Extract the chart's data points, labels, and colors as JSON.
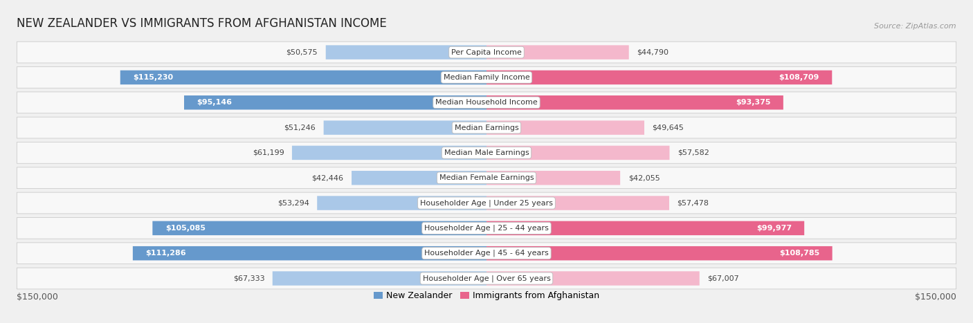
{
  "title": "NEW ZEALANDER VS IMMIGRANTS FROM AFGHANISTAN INCOME",
  "source": "Source: ZipAtlas.com",
  "categories": [
    "Per Capita Income",
    "Median Family Income",
    "Median Household Income",
    "Median Earnings",
    "Median Male Earnings",
    "Median Female Earnings",
    "Householder Age | Under 25 years",
    "Householder Age | 25 - 44 years",
    "Householder Age | 45 - 64 years",
    "Householder Age | Over 65 years"
  ],
  "nz_values": [
    50575,
    115230,
    95146,
    51246,
    61199,
    42446,
    53294,
    105085,
    111286,
    67333
  ],
  "af_values": [
    44790,
    108709,
    93375,
    49645,
    57582,
    42055,
    57478,
    99977,
    108785,
    67007
  ],
  "nz_labels": [
    "$50,575",
    "$115,230",
    "$95,146",
    "$51,246",
    "$61,199",
    "$42,446",
    "$53,294",
    "$105,085",
    "$111,286",
    "$67,333"
  ],
  "af_labels": [
    "$44,790",
    "$108,709",
    "$93,375",
    "$49,645",
    "$57,582",
    "$42,055",
    "$57,478",
    "$99,977",
    "$108,785",
    "$67,007"
  ],
  "nz_solid": [
    false,
    true,
    true,
    false,
    false,
    false,
    false,
    true,
    true,
    false
  ],
  "af_solid": [
    false,
    true,
    true,
    false,
    false,
    false,
    false,
    true,
    true,
    false
  ],
  "nz_color_solid": "#6699cc",
  "nz_color_light": "#aac8e8",
  "af_color_solid": "#e8648c",
  "af_color_light": "#f4b8cc",
  "max_value": 150000,
  "background_color": "#f0f0f0",
  "row_bg_color": "#f8f8f8",
  "row_border_color": "#cccccc",
  "legend_nz": "New Zealander",
  "legend_af": "Immigrants from Afghanistan",
  "xlabel_left": "$150,000",
  "xlabel_right": "$150,000",
  "title_fontsize": 12,
  "source_fontsize": 8,
  "label_fontsize": 9,
  "category_fontsize": 8,
  "value_fontsize": 8
}
